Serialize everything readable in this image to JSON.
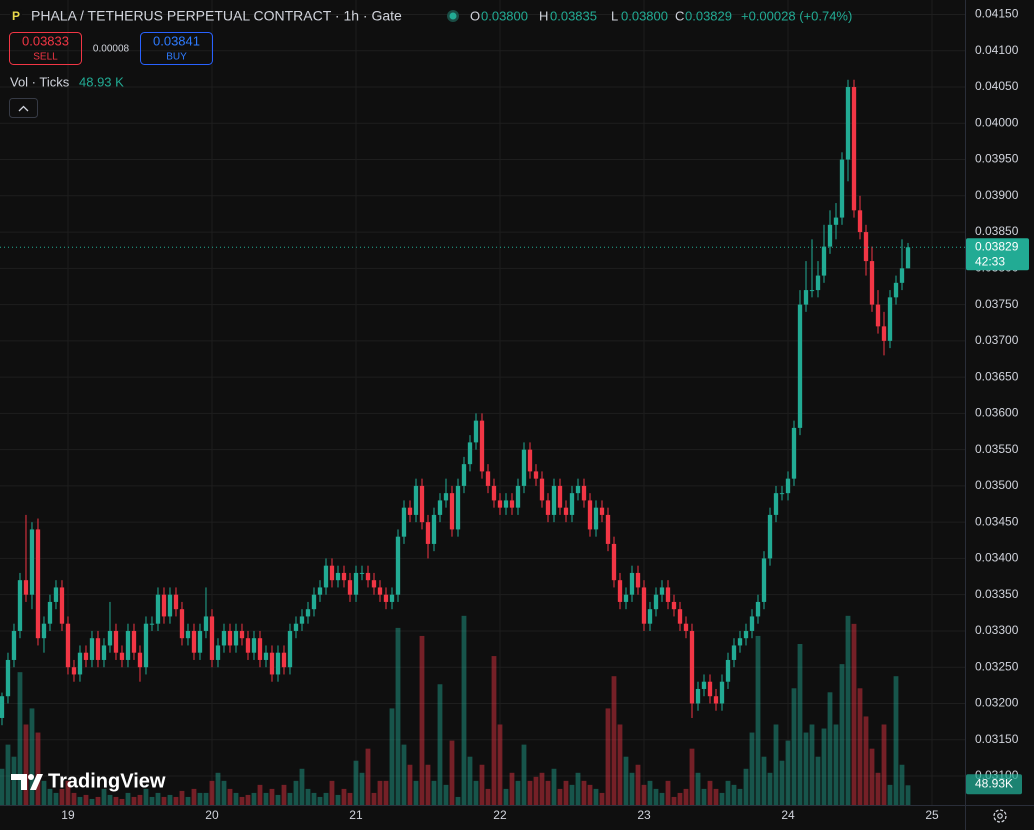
{
  "chart_data": {
    "type": "candlestick",
    "symbol": "PHALA / TETHERUS PERPETUAL CONTRACT · 1h · Gate",
    "ohlc_legend": [
      {
        "key": "O",
        "value": "0.03800"
      },
      {
        "key": "H",
        "value": "0.03835"
      },
      {
        "key": "L",
        "value": "0.03800"
      },
      {
        "key": "C",
        "value": "0.03829"
      }
    ],
    "change": "+0.00028 (+0.74%)",
    "sell_price": "0.03833",
    "sell": "SELL",
    "spread": "0.00008",
    "buy_price": "0.03841",
    "buy": "BUY",
    "volume_legend": "Vol · Ticks",
    "volume_legend_value": "48.93 K",
    "countdown": "42:33",
    "volume_axis_label": "48.93K",
    "branding": "TradingView",
    "up_color": "#22ab94",
    "down_color": "#f23645",
    "ylim": [
      0.0306,
      0.0417
    ],
    "yticks": [
      {
        "value": 0.031,
        "label": "0.03100"
      },
      {
        "value": 0.0315,
        "label": "0.03150"
      },
      {
        "value": 0.032,
        "label": "0.03200"
      },
      {
        "value": 0.0325,
        "label": "0.03250"
      },
      {
        "value": 0.033,
        "label": "0.03300"
      },
      {
        "value": 0.0335,
        "label": "0.03350"
      },
      {
        "value": 0.034,
        "label": "0.03400"
      },
      {
        "value": 0.0345,
        "label": "0.03450"
      },
      {
        "value": 0.035,
        "label": "0.03500"
      },
      {
        "value": 0.0355,
        "label": "0.03550"
      },
      {
        "value": 0.036,
        "label": "0.03600"
      },
      {
        "value": 0.0365,
        "label": "0.03650"
      },
      {
        "value": 0.037,
        "label": "0.03700"
      },
      {
        "value": 0.0375,
        "label": "0.03750"
      },
      {
        "value": 0.038,
        "label": "0.03800"
      },
      {
        "value": 0.0385,
        "label": "0.03850"
      },
      {
        "value": 0.039,
        "label": "0.03900"
      },
      {
        "value": 0.0395,
        "label": "0.03950"
      },
      {
        "value": 0.04,
        "label": "0.04000"
      },
      {
        "value": 0.0405,
        "label": "0.04050"
      },
      {
        "value": 0.041,
        "label": "0.04100"
      },
      {
        "value": 0.0415,
        "label": "0.04150"
      }
    ],
    "xlim": [
      -0.33,
      160.5
    ],
    "xticks": [
      {
        "value": 11,
        "label": "19"
      },
      {
        "value": 35,
        "label": "20"
      },
      {
        "value": 59,
        "label": "21"
      },
      {
        "value": 83,
        "label": "22"
      },
      {
        "value": 107,
        "label": "23"
      },
      {
        "value": 131,
        "label": "24"
      },
      {
        "value": 155,
        "label": "25"
      }
    ],
    "grid": true,
    "volume_lim": [
      0,
      2000
    ],
    "ohlc": [
      [
        0.0318,
        0.03215,
        0.0317,
        0.0321
      ],
      [
        0.0321,
        0.0327,
        0.032,
        0.0326
      ],
      [
        0.0326,
        0.0331,
        0.0325,
        0.033
      ],
      [
        0.033,
        0.0338,
        0.0329,
        0.0337
      ],
      [
        0.0337,
        0.0346,
        0.0334,
        0.0335
      ],
      [
        0.0335,
        0.0345,
        0.0333,
        0.0344
      ],
      [
        0.0344,
        0.03455,
        0.0328,
        0.0329
      ],
      [
        0.0329,
        0.0332,
        0.0327,
        0.0331
      ],
      [
        0.0331,
        0.0335,
        0.033,
        0.0334
      ],
      [
        0.0334,
        0.0337,
        0.0333,
        0.0336
      ],
      [
        0.0336,
        0.0337,
        0.033,
        0.0331
      ],
      [
        0.0331,
        0.0332,
        0.0324,
        0.0325
      ],
      [
        0.0325,
        0.0326,
        0.0323,
        0.0324
      ],
      [
        0.0324,
        0.0328,
        0.0323,
        0.0327
      ],
      [
        0.0327,
        0.0328,
        0.0325,
        0.0326
      ],
      [
        0.0326,
        0.033,
        0.0325,
        0.0329
      ],
      [
        0.0329,
        0.033,
        0.0325,
        0.0326
      ],
      [
        0.0326,
        0.0329,
        0.0325,
        0.0328
      ],
      [
        0.0328,
        0.0334,
        0.0327,
        0.033
      ],
      [
        0.033,
        0.0331,
        0.0326,
        0.0327
      ],
      [
        0.0327,
        0.0328,
        0.0325,
        0.0326
      ],
      [
        0.0326,
        0.0331,
        0.0325,
        0.033
      ],
      [
        0.033,
        0.0331,
        0.0326,
        0.0327
      ],
      [
        0.0327,
        0.0328,
        0.0323,
        0.0325
      ],
      [
        0.0325,
        0.0332,
        0.0324,
        0.0331
      ],
      [
        0.0331,
        0.0332,
        0.033,
        0.0331
      ],
      [
        0.0331,
        0.0336,
        0.033,
        0.0335
      ],
      [
        0.0335,
        0.0336,
        0.0331,
        0.0332
      ],
      [
        0.0332,
        0.0336,
        0.0331,
        0.0335
      ],
      [
        0.0335,
        0.0336,
        0.0332,
        0.0333
      ],
      [
        0.0333,
        0.0334,
        0.0328,
        0.0329
      ],
      [
        0.0329,
        0.0331,
        0.0328,
        0.033
      ],
      [
        0.033,
        0.0331,
        0.0326,
        0.0327
      ],
      [
        0.0327,
        0.0331,
        0.0326,
        0.033
      ],
      [
        0.033,
        0.0336,
        0.0329,
        0.0332
      ],
      [
        0.0332,
        0.0333,
        0.0325,
        0.0326
      ],
      [
        0.0326,
        0.0329,
        0.0325,
        0.0328
      ],
      [
        0.0328,
        0.0331,
        0.0327,
        0.033
      ],
      [
        0.033,
        0.0331,
        0.0327,
        0.0328
      ],
      [
        0.0328,
        0.0331,
        0.0327,
        0.033
      ],
      [
        0.033,
        0.0331,
        0.0328,
        0.0329
      ],
      [
        0.0329,
        0.033,
        0.0326,
        0.0327
      ],
      [
        0.0327,
        0.033,
        0.0326,
        0.0329
      ],
      [
        0.0329,
        0.033,
        0.0325,
        0.0326
      ],
      [
        0.0326,
        0.0328,
        0.0325,
        0.0327
      ],
      [
        0.0327,
        0.0328,
        0.0323,
        0.0324
      ],
      [
        0.0324,
        0.0328,
        0.0323,
        0.0327
      ],
      [
        0.0327,
        0.0328,
        0.0324,
        0.0325
      ],
      [
        0.0325,
        0.0331,
        0.0324,
        0.033
      ],
      [
        0.033,
        0.0332,
        0.0329,
        0.0331
      ],
      [
        0.0331,
        0.0333,
        0.033,
        0.0332
      ],
      [
        0.0332,
        0.0334,
        0.0331,
        0.0333
      ],
      [
        0.0333,
        0.0336,
        0.0332,
        0.0335
      ],
      [
        0.0335,
        0.0337,
        0.0334,
        0.0336
      ],
      [
        0.0336,
        0.034,
        0.0335,
        0.0339
      ],
      [
        0.0339,
        0.034,
        0.0336,
        0.0337
      ],
      [
        0.0337,
        0.0339,
        0.0336,
        0.0338
      ],
      [
        0.0338,
        0.0339,
        0.0336,
        0.0337
      ],
      [
        0.0337,
        0.0338,
        0.0334,
        0.0335
      ],
      [
        0.0335,
        0.0339,
        0.0334,
        0.0338
      ],
      [
        0.0338,
        0.0339,
        0.0337,
        0.0338
      ],
      [
        0.0338,
        0.0339,
        0.0336,
        0.0337
      ],
      [
        0.0337,
        0.0338,
        0.0335,
        0.0336
      ],
      [
        0.0336,
        0.0337,
        0.0334,
        0.0335
      ],
      [
        0.0335,
        0.0336,
        0.0333,
        0.0334
      ],
      [
        0.0334,
        0.0336,
        0.0333,
        0.0335
      ],
      [
        0.0335,
        0.0344,
        0.0334,
        0.0343
      ],
      [
        0.0343,
        0.0348,
        0.0342,
        0.0347
      ],
      [
        0.0347,
        0.0348,
        0.0345,
        0.0346
      ],
      [
        0.0346,
        0.0351,
        0.0345,
        0.035
      ],
      [
        0.035,
        0.0351,
        0.0344,
        0.0345
      ],
      [
        0.0345,
        0.0346,
        0.034,
        0.0342
      ],
      [
        0.0342,
        0.0347,
        0.0341,
        0.0346
      ],
      [
        0.0346,
        0.0349,
        0.0345,
        0.0348
      ],
      [
        0.0348,
        0.0351,
        0.0347,
        0.0349
      ],
      [
        0.0349,
        0.035,
        0.0343,
        0.0344
      ],
      [
        0.0344,
        0.0351,
        0.0343,
        0.035
      ],
      [
        0.035,
        0.0354,
        0.0349,
        0.0353
      ],
      [
        0.0353,
        0.0357,
        0.0352,
        0.0356
      ],
      [
        0.0356,
        0.036,
        0.0355,
        0.0359
      ],
      [
        0.0359,
        0.036,
        0.0351,
        0.0352
      ],
      [
        0.0352,
        0.0353,
        0.0349,
        0.035
      ],
      [
        0.035,
        0.0351,
        0.0347,
        0.0348
      ],
      [
        0.0348,
        0.0349,
        0.0346,
        0.0347
      ],
      [
        0.0347,
        0.0349,
        0.0346,
        0.0348
      ],
      [
        0.0348,
        0.0349,
        0.0346,
        0.0347
      ],
      [
        0.0347,
        0.0351,
        0.0346,
        0.035
      ],
      [
        0.035,
        0.0356,
        0.0349,
        0.0355
      ],
      [
        0.0355,
        0.0356,
        0.0351,
        0.0352
      ],
      [
        0.0352,
        0.0353,
        0.035,
        0.0351
      ],
      [
        0.0351,
        0.0352,
        0.0347,
        0.0348
      ],
      [
        0.0348,
        0.0349,
        0.0345,
        0.0346
      ],
      [
        0.0346,
        0.0351,
        0.0345,
        0.035
      ],
      [
        0.035,
        0.0351,
        0.0346,
        0.0347
      ],
      [
        0.0347,
        0.0348,
        0.0345,
        0.0346
      ],
      [
        0.0346,
        0.035,
        0.0345,
        0.0349
      ],
      [
        0.0349,
        0.0351,
        0.0348,
        0.035
      ],
      [
        0.035,
        0.0351,
        0.0347,
        0.0348
      ],
      [
        0.0348,
        0.0349,
        0.0343,
        0.0344
      ],
      [
        0.0344,
        0.0348,
        0.0343,
        0.0347
      ],
      [
        0.0347,
        0.0348,
        0.0345,
        0.0346
      ],
      [
        0.0346,
        0.0347,
        0.0341,
        0.0342
      ],
      [
        0.0342,
        0.0343,
        0.0336,
        0.0337
      ],
      [
        0.0337,
        0.0338,
        0.0333,
        0.0334
      ],
      [
        0.0334,
        0.0336,
        0.0333,
        0.0335
      ],
      [
        0.0335,
        0.0339,
        0.0334,
        0.0338
      ],
      [
        0.0338,
        0.0339,
        0.0335,
        0.0336
      ],
      [
        0.0336,
        0.0337,
        0.033,
        0.0331
      ],
      [
        0.0331,
        0.0334,
        0.033,
        0.0333
      ],
      [
        0.0333,
        0.0336,
        0.0332,
        0.0335
      ],
      [
        0.0335,
        0.0337,
        0.0334,
        0.0336
      ],
      [
        0.0336,
        0.0337,
        0.0333,
        0.0334
      ],
      [
        0.0334,
        0.0335,
        0.0332,
        0.0333
      ],
      [
        0.0333,
        0.0334,
        0.033,
        0.0331
      ],
      [
        0.0331,
        0.0332,
        0.0329,
        0.033
      ],
      [
        0.033,
        0.0331,
        0.0318,
        0.032
      ],
      [
        0.032,
        0.0323,
        0.0319,
        0.0322
      ],
      [
        0.0322,
        0.0324,
        0.0321,
        0.0323
      ],
      [
        0.0323,
        0.0324,
        0.032,
        0.0321
      ],
      [
        0.0321,
        0.0322,
        0.0319,
        0.032
      ],
      [
        0.032,
        0.0324,
        0.0319,
        0.0323
      ],
      [
        0.0323,
        0.0327,
        0.0322,
        0.0326
      ],
      [
        0.0326,
        0.0329,
        0.0325,
        0.0328
      ],
      [
        0.0328,
        0.033,
        0.0327,
        0.0329
      ],
      [
        0.0329,
        0.0331,
        0.0328,
        0.033
      ],
      [
        0.033,
        0.0333,
        0.0329,
        0.0332
      ],
      [
        0.0332,
        0.0335,
        0.0331,
        0.0334
      ],
      [
        0.0334,
        0.0341,
        0.0333,
        0.034
      ],
      [
        0.034,
        0.0347,
        0.0339,
        0.0346
      ],
      [
        0.0346,
        0.035,
        0.0345,
        0.0349
      ],
      [
        0.0349,
        0.035,
        0.0348,
        0.0349
      ],
      [
        0.0349,
        0.0352,
        0.0348,
        0.0351
      ],
      [
        0.0351,
        0.0359,
        0.035,
        0.0358
      ],
      [
        0.0358,
        0.0377,
        0.0357,
        0.0375
      ],
      [
        0.0375,
        0.0381,
        0.0374,
        0.0377
      ],
      [
        0.0377,
        0.0384,
        0.0376,
        0.0377
      ],
      [
        0.0377,
        0.0381,
        0.0376,
        0.0379
      ],
      [
        0.0379,
        0.0386,
        0.0378,
        0.0383
      ],
      [
        0.0383,
        0.0388,
        0.0382,
        0.0386
      ],
      [
        0.0386,
        0.0389,
        0.0384,
        0.0387
      ],
      [
        0.0387,
        0.0396,
        0.0386,
        0.0395
      ],
      [
        0.0395,
        0.0406,
        0.0392,
        0.0405
      ],
      [
        0.0405,
        0.0406,
        0.0387,
        0.0388
      ],
      [
        0.0388,
        0.039,
        0.0384,
        0.0385
      ],
      [
        0.0385,
        0.0386,
        0.0379,
        0.0381
      ],
      [
        0.0381,
        0.0383,
        0.0374,
        0.0375
      ],
      [
        0.0375,
        0.0377,
        0.0371,
        0.0372
      ],
      [
        0.0372,
        0.0374,
        0.0368,
        0.037
      ],
      [
        0.037,
        0.0377,
        0.0369,
        0.0376
      ],
      [
        0.0376,
        0.0379,
        0.0375,
        0.0378
      ],
      [
        0.0378,
        0.0384,
        0.0377,
        0.038
      ],
      [
        0.038,
        0.03835,
        0.038,
        0.03829
      ]
    ],
    "volume": [
      90,
      150,
      120,
      330,
      200,
      240,
      180,
      60,
      40,
      30,
      40,
      60,
      30,
      20,
      25,
      15,
      20,
      40,
      25,
      20,
      15,
      30,
      20,
      25,
      40,
      20,
      30,
      20,
      25,
      20,
      35,
      20,
      40,
      30,
      30,
      60,
      80,
      60,
      40,
      30,
      20,
      25,
      30,
      50,
      30,
      40,
      25,
      50,
      30,
      60,
      90,
      40,
      30,
      20,
      30,
      60,
      25,
      40,
      30,
      110,
      80,
      140,
      30,
      60,
      60,
      240,
      440,
      150,
      100,
      60,
      420,
      100,
      60,
      300,
      50,
      160,
      20,
      470,
      120,
      60,
      100,
      40,
      370,
      200,
      40,
      80,
      60,
      150,
      60,
      70,
      80,
      60,
      90,
      40,
      60,
      50,
      80,
      60,
      50,
      40,
      30,
      240,
      320,
      200,
      120,
      80,
      100,
      50,
      60,
      40,
      30,
      60,
      20,
      30,
      40,
      140,
      80,
      40,
      60,
      40,
      30,
      60,
      50,
      40,
      90,
      180,
      420,
      120,
      80,
      200,
      110,
      160,
      290,
      400,
      180,
      200,
      120,
      190,
      280,
      200,
      350,
      470,
      450,
      290,
      220,
      140,
      80,
      200,
      50,
      320,
      100,
      48.93
    ]
  }
}
